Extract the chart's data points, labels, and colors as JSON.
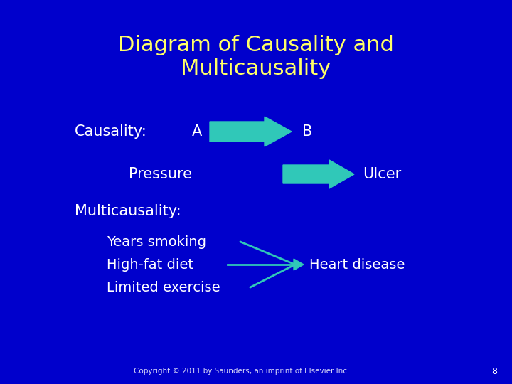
{
  "background_color": "#0000cc",
  "title": "Diagram of Causality and\nMulticausality",
  "title_color": "#ffff66",
  "title_fontsize": 22,
  "arrow_color": "#30c8b8",
  "text_color": "#ffffff",
  "copyright_text": "Copyright © 2011 by Saunders, an imprint of Elsevier Inc.",
  "page_number": "8",
  "causality_label": "Causality:",
  "causality_A": "A",
  "causality_B": "B",
  "pressure_label": "Pressure",
  "ulcer_label": "Ulcer",
  "multicausality_label": "Multicausality:",
  "causes": [
    "Years smoking",
    "High-fat diet",
    "Limited exercise"
  ],
  "effect": "Heart disease",
  "body_fontsize": 15,
  "copyright_fontsize": 7.5
}
